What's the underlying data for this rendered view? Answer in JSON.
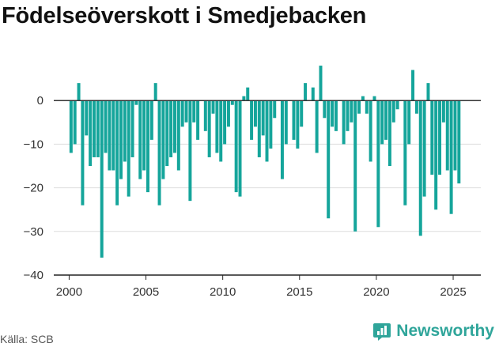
{
  "header": {
    "title": "Födelseöverskott i Smedjebacken"
  },
  "footer": {
    "source": "Källa: SCB",
    "brand": "Newsworthy",
    "brand_icon": "newsworthy-logo-icon"
  },
  "colors": {
    "bar": "#15a59b",
    "brand": "#2fa59a",
    "grid": "#dddddd",
    "zero": "#333333"
  },
  "chart_data": {
    "type": "bar",
    "title": "Födelseöverskott i Smedjebacken",
    "xlabel": "",
    "ylabel": "",
    "ylim": [
      -40,
      10
    ],
    "xlim": [
      1999.0,
      2026.8
    ],
    "yticks": [
      0,
      -10,
      -20,
      -30,
      -40
    ],
    "xticks": [
      2000,
      2005,
      2010,
      2015,
      2020,
      2025
    ],
    "grid": true,
    "granularity": "quarterly",
    "series": [
      {
        "start_year": 2000,
        "values": [
          -12,
          -10,
          4,
          -24,
          -8,
          -15,
          -13,
          -13,
          -36,
          -12,
          -16,
          -16,
          -24,
          -18,
          -14,
          -22,
          -13,
          -1,
          -18,
          -16,
          -21,
          -9,
          4,
          -24,
          -18,
          -15,
          -13,
          -12,
          -16,
          -6,
          -5,
          -23,
          -5,
          -9,
          0,
          -7,
          -13,
          -3,
          -12,
          -14,
          -10,
          -6,
          -1,
          -21,
          -22,
          1,
          3,
          -9,
          -6,
          -13,
          -8,
          -14,
          -11,
          -4,
          0,
          -18,
          -10,
          0,
          -9,
          -11,
          -6,
          4,
          0,
          3,
          -12,
          8,
          -4,
          -27,
          -6,
          -7,
          0,
          -10,
          -7,
          -5,
          -30,
          -3,
          1,
          -3,
          -14,
          1,
          -29,
          -10,
          -9,
          -15,
          -5,
          -2,
          0,
          -24,
          -10,
          7,
          -3,
          -31,
          -22,
          4,
          -17,
          -25,
          -17,
          -5,
          -16,
          -26,
          -16,
          -19
        ]
      }
    ]
  }
}
